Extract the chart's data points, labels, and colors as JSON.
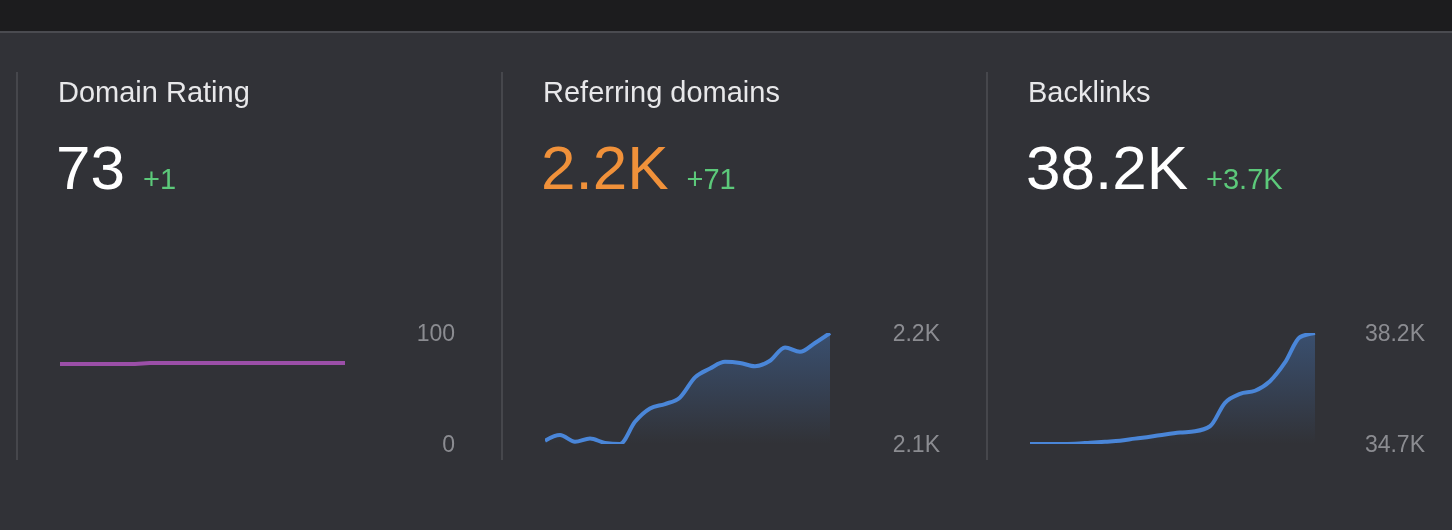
{
  "chart_data": [
    {
      "type": "line",
      "title": "Domain Rating",
      "subtitle": "73",
      "annotations": [
        "+1"
      ],
      "categories": [
        null,
        null,
        null,
        null,
        null,
        null,
        null,
        null,
        null,
        null,
        null,
        null,
        null,
        null,
        null,
        null,
        null,
        null,
        null,
        null
      ],
      "values": [
        72,
        72,
        72,
        72,
        72,
        72,
        73,
        73,
        73,
        73,
        73,
        73,
        73,
        73,
        73,
        73,
        73,
        73,
        73,
        73
      ],
      "color": "#9b4fa8",
      "ylim": [
        0,
        100
      ],
      "yticks": [
        0,
        100
      ]
    },
    {
      "type": "area",
      "title": "Referring domains",
      "subtitle": "2.2K",
      "annotations": [
        "+71"
      ],
      "categories": [
        null,
        null,
        null,
        null,
        null,
        null,
        null,
        null,
        null,
        null,
        null,
        null,
        null,
        null,
        null,
        null,
        null,
        null,
        null,
        null
      ],
      "values": [
        2103,
        2108,
        2102,
        2105,
        2101,
        2100,
        2120,
        2132,
        2136,
        2142,
        2160,
        2168,
        2174,
        2173,
        2170,
        2175,
        2187,
        2183,
        2191,
        2200
      ],
      "color": "#4a86d8",
      "ylim": [
        2100,
        2200
      ],
      "yticks": [
        {
          "value": 2100,
          "label": "2.1K"
        },
        {
          "value": 2200,
          "label": "2.2K"
        }
      ]
    },
    {
      "type": "area",
      "title": "Backlinks",
      "subtitle": "38.2K",
      "annotations": [
        "+3.7K"
      ],
      "categories": [
        null,
        null,
        null,
        null,
        null,
        null,
        null,
        null,
        null,
        null,
        null,
        null,
        null,
        null,
        null,
        null,
        null,
        null,
        null,
        null
      ],
      "values": [
        34700,
        34700,
        34700,
        34710,
        34740,
        34770,
        34800,
        34870,
        34930,
        35000,
        35060,
        35100,
        35260,
        36000,
        36280,
        36380,
        36680,
        37270,
        38070,
        38200
      ],
      "color": "#4a86d8",
      "ylim": [
        34700,
        38200
      ],
      "yticks": [
        {
          "value": 34700,
          "label": "34.7K"
        },
        {
          "value": 38200,
          "label": "38.2K"
        }
      ]
    }
  ]
}
